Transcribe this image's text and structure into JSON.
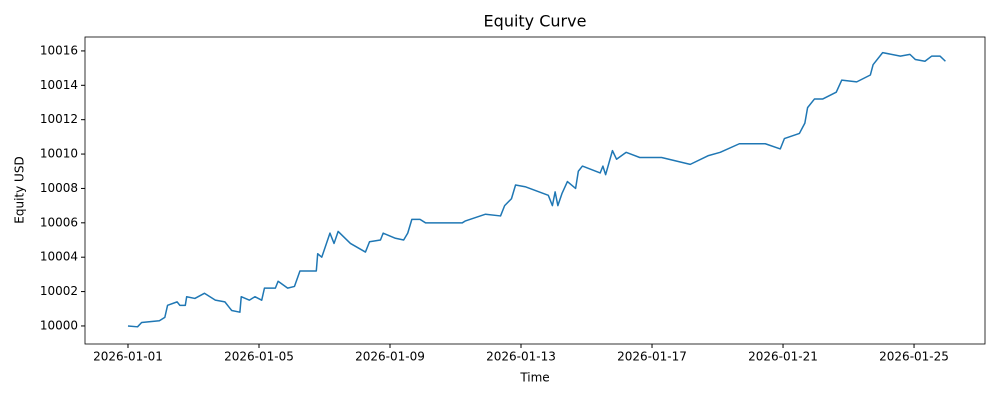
{
  "chart_data": {
    "type": "line",
    "title": "Equity Curve",
    "x_label": "Time",
    "y_label": "Equity USD",
    "xlim": [
      "2025-12-30T16:30",
      "2026-01-27T04:00"
    ],
    "xticks": [
      "2026-01-01",
      "2026-01-05",
      "2026-01-09",
      "2026-01-13",
      "2026-01-17",
      "2026-01-21",
      "2026-01-25"
    ],
    "ylim": [
      9998.95,
      10016.81
    ],
    "yticks": [
      10000,
      10002,
      10004,
      10006,
      10008,
      10010,
      10012,
      10014,
      10016
    ],
    "grid": false,
    "x": [
      "2026-01-01T00:00",
      "2026-01-01T07:00",
      "2026-01-01T10:00",
      "2026-01-01T23:00",
      "2026-01-02T03:00",
      "2026-01-02T05:00",
      "2026-01-02T12:00",
      "2026-01-02T14:00",
      "2026-01-02T18:00",
      "2026-01-02T19:00",
      "2026-01-03T01:00",
      "2026-01-03T08:00",
      "2026-01-03T16:00",
      "2026-01-03T23:00",
      "2026-01-04T02:00",
      "2026-01-04T04:00",
      "2026-01-04T10:00",
      "2026-01-04T11:00",
      "2026-01-04T17:00",
      "2026-01-04T21:00",
      "2026-01-05T02:00",
      "2026-01-05T04:00",
      "2026-01-05T12:00",
      "2026-01-05T14:00",
      "2026-01-05T21:00",
      "2026-01-06T02:00",
      "2026-01-06T06:00",
      "2026-01-06T18:00",
      "2026-01-06T19:00",
      "2026-01-06T22:00",
      "2026-01-07T04:00",
      "2026-01-07T07:00",
      "2026-01-07T10:00",
      "2026-01-07T19:00",
      "2026-01-08T06:00",
      "2026-01-08T09:00",
      "2026-01-08T17:00",
      "2026-01-08T19:00",
      "2026-01-09T04:00",
      "2026-01-09T10:00",
      "2026-01-09T13:00",
      "2026-01-09T16:00",
      "2026-01-09T22:00",
      "2026-01-10T02:00",
      "2026-01-11T05:00",
      "2026-01-11T07:00",
      "2026-01-11T22:00",
      "2026-01-12T09:00",
      "2026-01-12T12:00",
      "2026-01-12T17:00",
      "2026-01-12T20:00",
      "2026-01-13T03:00",
      "2026-01-13T20:00",
      "2026-01-13T23:00",
      "2026-01-14T01:00",
      "2026-01-14T03:00",
      "2026-01-14T06:00",
      "2026-01-14T10:00",
      "2026-01-14T16:00",
      "2026-01-14T18:00",
      "2026-01-14T21:00",
      "2026-01-15T10:00",
      "2026-01-15T12:00",
      "2026-01-15T14:00",
      "2026-01-15T19:00",
      "2026-01-15T22:00",
      "2026-01-16T05:00",
      "2026-01-16T15:00",
      "2026-01-17T07:00",
      "2026-01-18T04:00",
      "2026-01-18T17:00",
      "2026-01-19T02:00",
      "2026-01-19T16:00",
      "2026-01-20T11:00",
      "2026-01-20T22:00",
      "2026-01-21T01:00",
      "2026-01-21T12:00",
      "2026-01-21T16:00",
      "2026-01-21T18:00",
      "2026-01-21T23:00",
      "2026-01-22T05:00",
      "2026-01-22T15:00",
      "2026-01-22T19:00",
      "2026-01-23T06:00",
      "2026-01-23T16:00",
      "2026-01-23T18:00",
      "2026-01-24T01:00",
      "2026-01-24T14:00",
      "2026-01-24T21:00",
      "2026-01-25T01:00",
      "2026-01-25T08:00",
      "2026-01-25T13:00",
      "2026-01-25T19:00",
      "2026-01-25T23:00"
    ],
    "series": [
      {
        "name": "Equity",
        "color": "#1f77b4",
        "values": [
          10000,
          9999.95,
          10000.2,
          10000.3,
          10000.5,
          10001.2,
          10001.4,
          10001.2,
          10001.2,
          10001.7,
          10001.6,
          10001.9,
          10001.5,
          10001.4,
          10001.1,
          10000.9,
          10000.8,
          10001.7,
          10001.5,
          10001.7,
          10001.5,
          10002.2,
          10002.2,
          10002.6,
          10002.2,
          10002.3,
          10003.2,
          10003.2,
          10004.2,
          10004.0,
          10005.4,
          10004.8,
          10005.5,
          10004.8,
          10004.3,
          10004.9,
          10005.0,
          10005.4,
          10005.1,
          10005.0,
          10005.4,
          10006.2,
          10006.2,
          10006.0,
          10006.0,
          10006.1,
          10006.5,
          10006.4,
          10007.0,
          10007.4,
          10008.2,
          10008.1,
          10007.6,
          10007.0,
          10007.8,
          10007.0,
          10007.7,
          10008.4,
          10008.0,
          10009.0,
          10009.3,
          10008.9,
          10009.3,
          10008.8,
          10010.2,
          10009.7,
          10010.1,
          10009.8,
          10009.8,
          10009.4,
          10009.9,
          10010.1,
          10010.6,
          10010.6,
          10010.3,
          10010.9,
          10011.2,
          10011.8,
          10012.7,
          10013.2,
          10013.2,
          10013.6,
          10014.3,
          10014.2,
          10014.6,
          10015.2,
          10015.9,
          10015.7,
          10015.8,
          10015.5,
          10015.4,
          10015.7,
          10015.7,
          10015.4
        ]
      }
    ]
  }
}
